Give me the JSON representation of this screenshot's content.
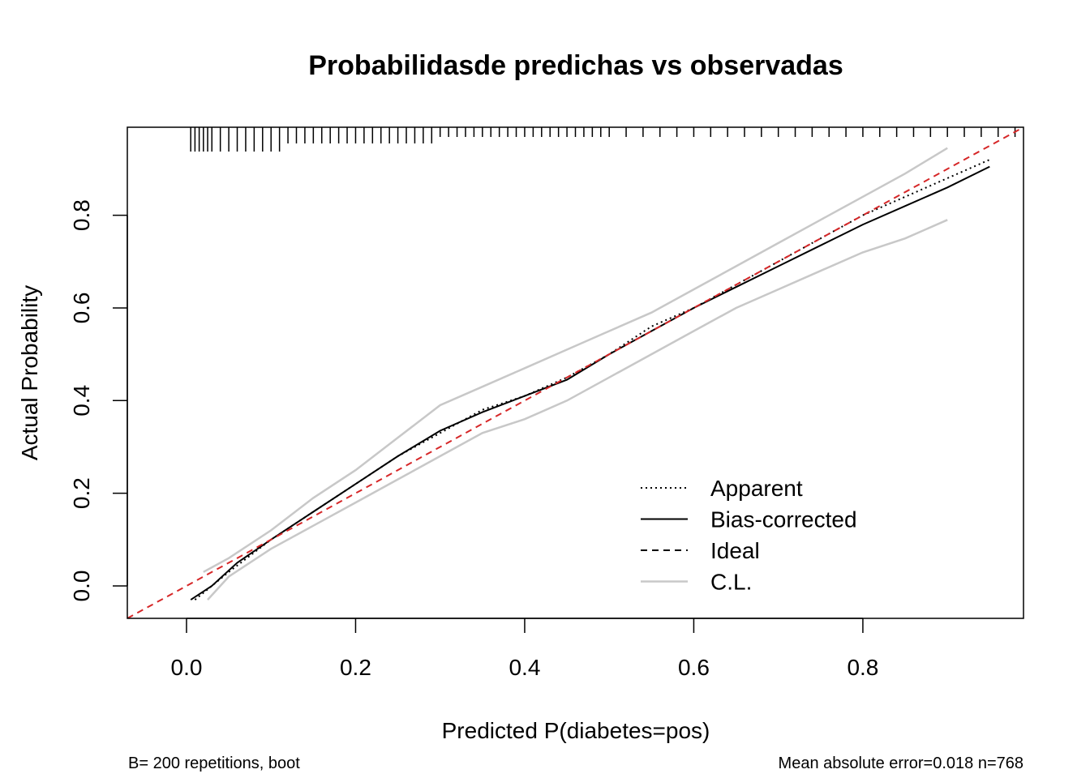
{
  "chart_data": {
    "type": "line",
    "title": "Probabilidasde predichas vs observadas",
    "xlabel": "Predicted P(diabetes=pos)",
    "ylabel": "Actual Probability",
    "xlim": [
      -0.07,
      0.99
    ],
    "ylim": [
      -0.07,
      0.99
    ],
    "x_ticks": [
      "0.0",
      "0.2",
      "0.4",
      "0.6",
      "0.8"
    ],
    "y_ticks": [
      "0.0",
      "0.2",
      "0.4",
      "0.6",
      "0.8"
    ],
    "grid": false,
    "legend_position": "bottom-right",
    "series": [
      {
        "name": "Apparent",
        "style": "dotted",
        "color": "#000000",
        "x": [
          0.01,
          0.05,
          0.1,
          0.15,
          0.2,
          0.25,
          0.3,
          0.35,
          0.4,
          0.45,
          0.5,
          0.55,
          0.6,
          0.65,
          0.7,
          0.75,
          0.8,
          0.85,
          0.9,
          0.95
        ],
        "y": [
          -0.03,
          0.03,
          0.1,
          0.16,
          0.22,
          0.28,
          0.33,
          0.38,
          0.41,
          0.45,
          0.5,
          0.56,
          0.6,
          0.65,
          0.7,
          0.75,
          0.8,
          0.84,
          0.88,
          0.92
        ]
      },
      {
        "name": "Bias-corrected",
        "style": "solid",
        "color": "#000000",
        "x": [
          0.005,
          0.03,
          0.06,
          0.1,
          0.15,
          0.2,
          0.25,
          0.3,
          0.35,
          0.4,
          0.45,
          0.5,
          0.55,
          0.6,
          0.65,
          0.7,
          0.75,
          0.8,
          0.85,
          0.9,
          0.95
        ],
        "y": [
          -0.03,
          0.0,
          0.05,
          0.1,
          0.16,
          0.22,
          0.28,
          0.335,
          0.375,
          0.41,
          0.445,
          0.5,
          0.55,
          0.6,
          0.645,
          0.69,
          0.735,
          0.78,
          0.82,
          0.86,
          0.905
        ]
      },
      {
        "name": "Ideal",
        "style": "dashed",
        "color": "#d62728",
        "x": [
          -0.07,
          0.99
        ],
        "y": [
          -0.07,
          0.99
        ]
      },
      {
        "name": "C.L.",
        "style": "solid",
        "color": "#c8c8c8",
        "upper_x": [
          0.02,
          0.05,
          0.1,
          0.15,
          0.2,
          0.25,
          0.3,
          0.35,
          0.4,
          0.45,
          0.5,
          0.55,
          0.6,
          0.65,
          0.7,
          0.75,
          0.8,
          0.85,
          0.9
        ],
        "upper_y": [
          0.03,
          0.06,
          0.12,
          0.19,
          0.25,
          0.32,
          0.39,
          0.43,
          0.47,
          0.51,
          0.55,
          0.59,
          0.64,
          0.69,
          0.74,
          0.79,
          0.84,
          0.89,
          0.945
        ],
        "lower_x": [
          0.025,
          0.05,
          0.1,
          0.15,
          0.2,
          0.25,
          0.3,
          0.35,
          0.4,
          0.45,
          0.5,
          0.55,
          0.6,
          0.65,
          0.7,
          0.75,
          0.8,
          0.85,
          0.9
        ],
        "lower_y": [
          -0.03,
          0.02,
          0.08,
          0.13,
          0.18,
          0.23,
          0.28,
          0.33,
          0.36,
          0.4,
          0.45,
          0.5,
          0.55,
          0.6,
          0.64,
          0.68,
          0.72,
          0.75,
          0.79
        ]
      }
    ],
    "rug": [
      0.005,
      0.01,
      0.015,
      0.02,
      0.025,
      0.03,
      0.04,
      0.05,
      0.06,
      0.07,
      0.08,
      0.09,
      0.1,
      0.11,
      0.12,
      0.13,
      0.14,
      0.15,
      0.16,
      0.17,
      0.18,
      0.19,
      0.2,
      0.21,
      0.22,
      0.23,
      0.24,
      0.25,
      0.26,
      0.27,
      0.28,
      0.29,
      0.3,
      0.31,
      0.32,
      0.33,
      0.34,
      0.35,
      0.36,
      0.37,
      0.38,
      0.39,
      0.4,
      0.41,
      0.42,
      0.43,
      0.44,
      0.45,
      0.46,
      0.47,
      0.48,
      0.49,
      0.5,
      0.52,
      0.54,
      0.56,
      0.58,
      0.6,
      0.62,
      0.64,
      0.66,
      0.68,
      0.7,
      0.72,
      0.74,
      0.76,
      0.78,
      0.8,
      0.82,
      0.84,
      0.86,
      0.88,
      0.9,
      0.92,
      0.94,
      0.96,
      0.98
    ],
    "footnote_left": "B= 200 repetitions, boot",
    "footnote_right": "Mean absolute error=0.018 n=768"
  }
}
